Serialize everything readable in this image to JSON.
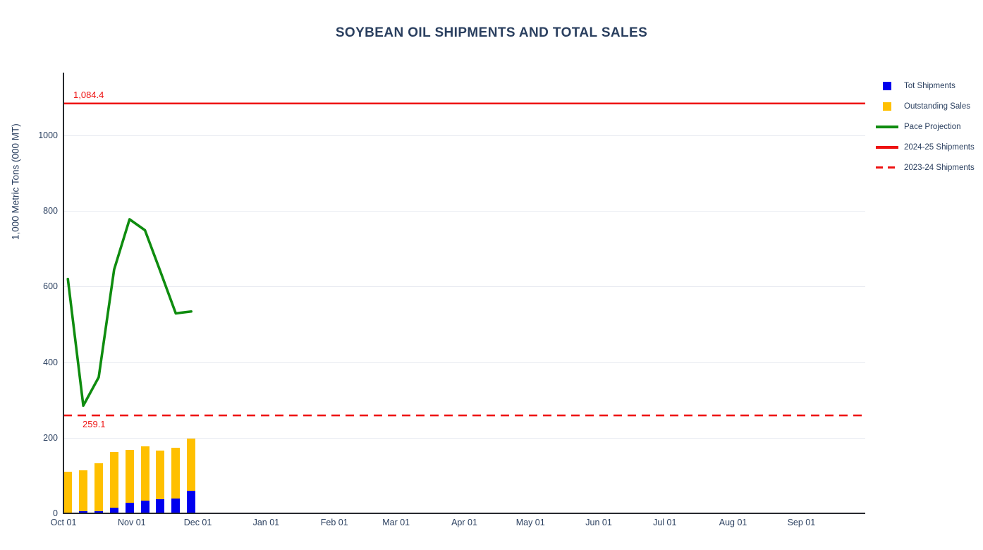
{
  "title_text": "SOYBEAN OIL SHIPMENTS AND TOTAL SALES",
  "colors": {
    "text_navy": "#2a3f5f",
    "bar_blue": "#0000ee",
    "bar_orange": "#ffc000",
    "line_green": "#0f8c0f",
    "line_red": "#ee1111",
    "grid": "#e8eaf1",
    "axis": "#27292e"
  },
  "chart_data": {
    "type": "bar",
    "title": "SOYBEAN OIL SHIPMENTS AND TOTAL SALES",
    "xlabel": "",
    "ylabel": "1,000 Metric Tons (000 MT)",
    "ylim": [
      0,
      1166
    ],
    "y_ticks": [
      0,
      200,
      400,
      600,
      800,
      1000
    ],
    "grid": "horizontal-only",
    "legend_position": "right-top-outside",
    "x_axis": {
      "kind": "time",
      "domain_days": 364,
      "month_ticks": [
        {
          "label": "Oct 01",
          "day": 0
        },
        {
          "label": "Nov 01",
          "day": 31
        },
        {
          "label": "Dec 01",
          "day": 61
        },
        {
          "label": "Jan 01",
          "day": 92
        },
        {
          "label": "Feb 01",
          "day": 123
        },
        {
          "label": "Mar 01",
          "day": 151
        },
        {
          "label": "Apr 01",
          "day": 182
        },
        {
          "label": "May 01",
          "day": 212
        },
        {
          "label": "Jun 01",
          "day": 243
        },
        {
          "label": "Jul 01",
          "day": 273
        },
        {
          "label": "Aug 01",
          "day": 304
        },
        {
          "label": "Sep 01",
          "day": 335
        }
      ]
    },
    "weekly_x_days": [
      2,
      9,
      16,
      23,
      30,
      37,
      44,
      51,
      58
    ],
    "series": [
      {
        "name": "Tot Shipments",
        "type": "bar-stack-bottom",
        "color": "#0000ee",
        "values": [
          1,
          5,
          6,
          15,
          28,
          33,
          37,
          40,
          60
        ]
      },
      {
        "name": "Outstanding Sales",
        "type": "bar-stack-top",
        "color": "#ffc000",
        "values": [
          109,
          109,
          127,
          147,
          140,
          145,
          129,
          134,
          138
        ]
      },
      {
        "name": "Pace Projection",
        "type": "line",
        "color": "#0f8c0f",
        "values": [
          620,
          285,
          360,
          645,
          778,
          749,
          640,
          529,
          534
        ]
      },
      {
        "name": "2024-25 Shipments",
        "type": "hline",
        "style": "solid",
        "color": "#ee1111",
        "value": 1084.4,
        "annotation": "1,084.4"
      },
      {
        "name": "2023-24 Shipments",
        "type": "hline",
        "style": "dashed",
        "color": "#ee1111",
        "value": 259.1,
        "annotation": "259.1"
      }
    ],
    "legend": [
      {
        "label": "Tot Shipments",
        "swatch": "square",
        "color": "#0000ee"
      },
      {
        "label": "Outstanding Sales",
        "swatch": "square",
        "color": "#ffc000"
      },
      {
        "label": "Pace Projection",
        "swatch": "line",
        "color": "#0f8c0f"
      },
      {
        "label": "2024-25 Shipments",
        "swatch": "line",
        "color": "#ee1111"
      },
      {
        "label": "2023-24 Shipments",
        "swatch": "dash",
        "color": "#ee1111"
      }
    ]
  }
}
